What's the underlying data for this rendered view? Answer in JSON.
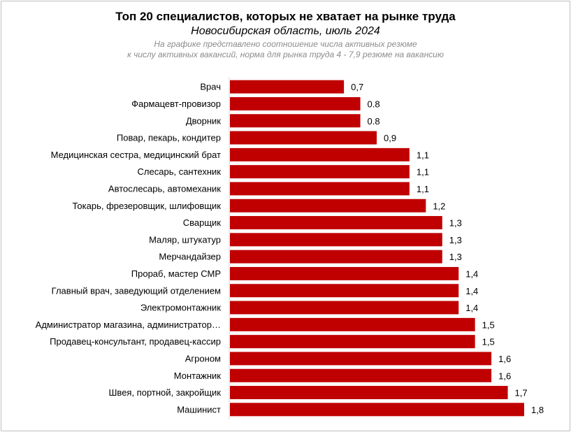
{
  "chart_data": {
    "type": "bar",
    "orientation": "horizontal",
    "title": "Топ 20 специалистов, которых не хватает на рынке труда",
    "subtitle": "Новосибирская область, июль 2024",
    "note_line1": "На графике представлено соотношение числа активных резюме",
    "note_line2": "к числу активных вакансий, норма для рынка труда 4 - 7,9 резюме на вакансию",
    "bar_color": "#c00000",
    "xlim": [
      0,
      1.8
    ],
    "categories": [
      "Врач",
      "Фармацевт-провизор",
      "Дворник",
      "Повар, пекарь, кондитер",
      "Медицинская сестра, медицинский брат",
      "Слесарь, сантехник",
      "Автослесарь, автомеханик",
      "Токарь, фрезеровщик, шлифовщик",
      "Сварщик",
      "Маляр, штукатур",
      "Мерчандайзер",
      "Прораб, мастер СМР",
      "Главный врач, заведующий отделением",
      "Электромонтажник",
      "Администратор магазина, администратор…",
      "Продавец-консультант, продавец-кассир",
      "Агроном",
      "Монтажник",
      "Швея, портной, закройщик",
      "Машинист"
    ],
    "values": [
      0.7,
      0.8,
      0.8,
      0.9,
      1.1,
      1.1,
      1.1,
      1.2,
      1.3,
      1.3,
      1.3,
      1.4,
      1.4,
      1.4,
      1.5,
      1.5,
      1.6,
      1.6,
      1.7,
      1.8
    ],
    "value_labels": [
      "0,7",
      "0.8",
      "0.8",
      "0,9",
      "1,1",
      "1,1",
      "1,1",
      "1,2",
      "1,3",
      "1,3",
      "1,3",
      "1,4",
      "1,4",
      "1,4",
      "1,5",
      "1,5",
      "1,6",
      "1,6",
      "1,7",
      "1,8"
    ]
  }
}
